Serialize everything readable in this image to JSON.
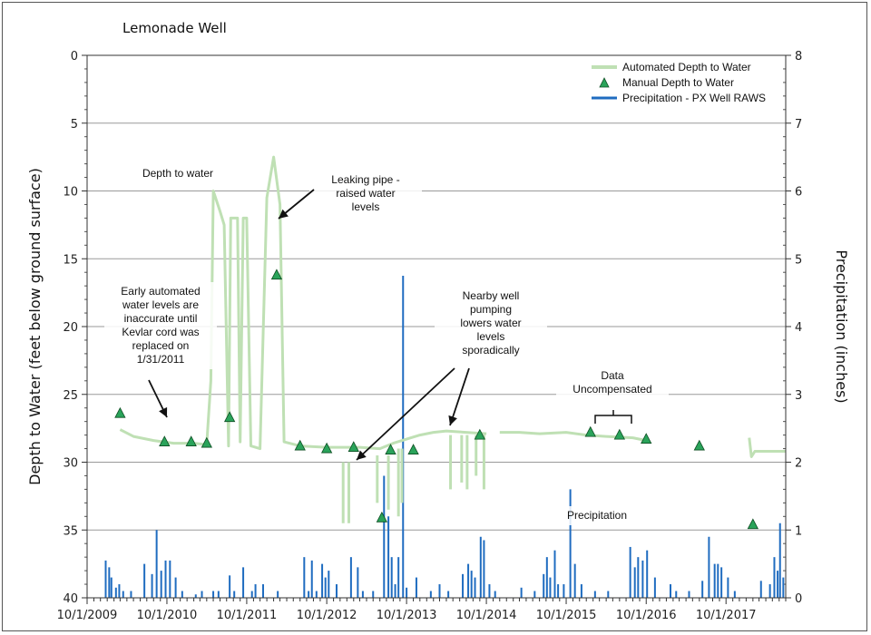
{
  "chart_data": {
    "type": "line",
    "title": "Lemonade Well",
    "ylabel": "Depth to Water (feet below ground surface)",
    "y2label": "Precipitation (inches)",
    "ylim": [
      40,
      0
    ],
    "y2lim": [
      0,
      8
    ],
    "yticks": [
      "0",
      "5",
      "10",
      "15",
      "20",
      "25",
      "30",
      "35",
      "40"
    ],
    "y2ticks": [
      "0",
      "1",
      "2",
      "3",
      "4",
      "5",
      "6",
      "7",
      "8"
    ],
    "xlim": [
      "2009-10-01",
      "2018-07-01"
    ],
    "xticks": [
      "10/1/2009",
      "10/1/2010",
      "10/1/2011",
      "10/1/2012",
      "10/1/2013",
      "10/1/2014",
      "10/1/2015",
      "10/1/2016",
      "10/1/2017"
    ],
    "grid": "horizontal",
    "legend_position": "top-right",
    "series": [
      {
        "name": "Automated Depth to Water",
        "type": "line",
        "axis": "left",
        "color": "#bfe0b4",
        "points": [
          [
            "2010-03-01",
            27.6
          ],
          [
            "2010-05-01",
            28.1
          ],
          [
            "2010-08-01",
            28.4
          ],
          [
            "2010-11-01",
            28.6
          ],
          [
            "2011-02-01",
            28.6
          ],
          [
            "2011-04-01",
            28.7
          ],
          [
            "2011-04-20",
            24.0
          ],
          [
            "2011-05-01",
            10.0
          ],
          [
            "2011-06-01",
            11.5
          ],
          [
            "2011-06-20",
            12.5
          ],
          [
            "2011-07-10",
            28.8
          ],
          [
            "2011-07-20",
            12.0
          ],
          [
            "2011-08-20",
            12.0
          ],
          [
            "2011-09-01",
            28.5
          ],
          [
            "2011-09-15",
            12.0
          ],
          [
            "2011-10-01",
            12.0
          ],
          [
            "2011-10-20",
            28.8
          ],
          [
            "2011-12-01",
            29.0
          ],
          [
            "2012-01-01",
            10.5
          ],
          [
            "2012-02-01",
            7.5
          ],
          [
            "2012-03-01",
            11.0
          ],
          [
            "2012-03-20",
            28.5
          ],
          [
            "2012-06-01",
            28.8
          ],
          [
            "2012-10-01",
            28.9
          ],
          [
            "2013-01-01",
            28.9
          ],
          [
            "2013-03-01",
            28.9
          ],
          [
            "2013-06-01",
            29.0
          ],
          [
            "2013-08-01",
            28.6
          ],
          [
            "2013-10-01",
            28.3
          ],
          [
            "2013-12-01",
            28.0
          ],
          [
            "2014-02-01",
            27.8
          ],
          [
            "2014-04-01",
            27.7
          ],
          [
            "2014-07-01",
            27.8
          ],
          [
            "2014-10-01",
            27.9
          ]
        ],
        "dips": [
          [
            "2012-12-15",
            30.0,
            34.5
          ],
          [
            "2013-01-10",
            30.0,
            34.5
          ],
          [
            "2013-05-20",
            29.5,
            33.0
          ],
          [
            "2013-07-10",
            29.5,
            33.5
          ],
          [
            "2013-08-25",
            29.0,
            34.0
          ],
          [
            "2013-09-10",
            29.0,
            33.0
          ],
          [
            "2014-04-20",
            28.0,
            32.0
          ],
          [
            "2014-06-10",
            28.0,
            31.5
          ],
          [
            "2014-07-05",
            28.0,
            32.0
          ],
          [
            "2014-08-15",
            28.0,
            31.0
          ],
          [
            "2014-09-20",
            28.0,
            32.0
          ]
        ],
        "segments": [
          [
            [
              "2014-12-01",
              27.8
            ],
            [
              "2015-03-01",
              27.8
            ],
            [
              "2015-06-01",
              27.9
            ],
            [
              "2015-10-01",
              27.8
            ],
            [
              "2016-01-01",
              28.0
            ],
            [
              "2016-04-01",
              28.1
            ],
            [
              "2016-08-01",
              28.2
            ],
            [
              "2016-10-01",
              28.4
            ]
          ],
          [
            [
              "2018-01-15",
              28.2
            ],
            [
              "2018-01-25",
              29.6
            ],
            [
              "2018-02-10",
              29.2
            ],
            [
              "2018-04-01",
              29.2
            ],
            [
              "2018-07-01",
              29.2
            ]
          ]
        ]
      },
      {
        "name": "Manual Depth to Water",
        "type": "scatter",
        "axis": "left",
        "marker": "triangle",
        "color": "#2aa35a",
        "points": [
          [
            "2010-03-01",
            26.4
          ],
          [
            "2010-09-20",
            28.5
          ],
          [
            "2011-01-20",
            28.5
          ],
          [
            "2011-04-01",
            28.6
          ],
          [
            "2011-07-15",
            26.7
          ],
          [
            "2012-02-15",
            16.2
          ],
          [
            "2012-06-01",
            28.8
          ],
          [
            "2012-10-01",
            29.0
          ],
          [
            "2013-02-01",
            28.9
          ],
          [
            "2013-06-10",
            34.1
          ],
          [
            "2013-07-20",
            29.1
          ],
          [
            "2013-11-01",
            29.1
          ],
          [
            "2014-09-01",
            28.0
          ],
          [
            "2016-01-20",
            27.8
          ],
          [
            "2016-06-01",
            28.0
          ],
          [
            "2016-10-01",
            28.3
          ],
          [
            "2017-06-01",
            28.8
          ],
          [
            "2018-02-01",
            34.6
          ]
        ]
      },
      {
        "name": "Precipitation - PX Well RAWS",
        "type": "bar",
        "axis": "right",
        "color": "#1f6cc0",
        "points": [
          [
            "2009-12-25",
            0.55
          ],
          [
            "2010-01-10",
            0.45
          ],
          [
            "2010-01-20",
            0.3
          ],
          [
            "2010-02-10",
            0.15
          ],
          [
            "2010-02-25",
            0.2
          ],
          [
            "2010-03-15",
            0.1
          ],
          [
            "2010-04-20",
            0.1
          ],
          [
            "2010-06-20",
            0.5
          ],
          [
            "2010-07-25",
            0.35
          ],
          [
            "2010-08-15",
            1.0
          ],
          [
            "2010-09-05",
            0.4
          ],
          [
            "2010-09-25",
            0.55
          ],
          [
            "2010-10-15",
            0.55
          ],
          [
            "2010-11-10",
            0.3
          ],
          [
            "2010-12-10",
            0.1
          ],
          [
            "2011-02-10",
            0.05
          ],
          [
            "2011-03-10",
            0.1
          ],
          [
            "2011-05-01",
            0.1
          ],
          [
            "2011-05-25",
            0.1
          ],
          [
            "2011-07-15",
            0.33
          ],
          [
            "2011-08-05",
            0.1
          ],
          [
            "2011-09-15",
            0.45
          ],
          [
            "2011-10-25",
            0.1
          ],
          [
            "2011-11-10",
            0.2
          ],
          [
            "2011-12-15",
            0.2
          ],
          [
            "2012-02-20",
            0.1
          ],
          [
            "2012-06-20",
            0.6
          ],
          [
            "2012-07-10",
            0.1
          ],
          [
            "2012-07-25",
            0.55
          ],
          [
            "2012-08-15",
            0.1
          ],
          [
            "2012-09-10",
            0.5
          ],
          [
            "2012-09-25",
            0.3
          ],
          [
            "2012-10-10",
            0.4
          ],
          [
            "2012-11-15",
            0.2
          ],
          [
            "2013-01-20",
            0.6
          ],
          [
            "2013-02-20",
            0.45
          ],
          [
            "2013-03-15",
            0.1
          ],
          [
            "2013-05-01",
            0.1
          ],
          [
            "2013-06-20",
            1.8
          ],
          [
            "2013-07-10",
            1.2
          ],
          [
            "2013-07-25",
            0.6
          ],
          [
            "2013-08-10",
            0.2
          ],
          [
            "2013-08-25",
            0.6
          ],
          [
            "2013-09-15",
            4.75
          ],
          [
            "2013-10-01",
            0.15
          ],
          [
            "2013-11-15",
            0.3
          ],
          [
            "2014-01-20",
            0.1
          ],
          [
            "2014-03-01",
            0.2
          ],
          [
            "2014-04-10",
            0.1
          ],
          [
            "2014-06-15",
            0.35
          ],
          [
            "2014-07-10",
            0.5
          ],
          [
            "2014-07-25",
            0.4
          ],
          [
            "2014-08-10",
            0.3
          ],
          [
            "2014-09-05",
            0.9
          ],
          [
            "2014-09-20",
            0.85
          ],
          [
            "2014-10-15",
            0.2
          ],
          [
            "2014-11-10",
            0.1
          ],
          [
            "2015-03-10",
            0.15
          ],
          [
            "2015-05-10",
            0.1
          ],
          [
            "2015-06-20",
            0.35
          ],
          [
            "2015-07-05",
            0.6
          ],
          [
            "2015-07-20",
            0.3
          ],
          [
            "2015-08-10",
            0.7
          ],
          [
            "2015-08-25",
            0.2
          ],
          [
            "2015-09-20",
            0.2
          ],
          [
            "2015-10-20",
            1.6
          ],
          [
            "2015-11-10",
            0.5
          ],
          [
            "2015-12-10",
            0.2
          ],
          [
            "2016-02-10",
            0.1
          ],
          [
            "2016-04-10",
            0.1
          ],
          [
            "2016-07-20",
            0.75
          ],
          [
            "2016-08-10",
            0.45
          ],
          [
            "2016-08-25",
            0.6
          ],
          [
            "2016-09-15",
            0.55
          ],
          [
            "2016-10-05",
            0.7
          ],
          [
            "2016-11-10",
            0.3
          ],
          [
            "2017-01-20",
            0.2
          ],
          [
            "2017-02-15",
            0.1
          ],
          [
            "2017-04-15",
            0.1
          ],
          [
            "2017-06-15",
            0.25
          ],
          [
            "2017-07-15",
            0.9
          ],
          [
            "2017-08-10",
            0.5
          ],
          [
            "2017-08-25",
            0.5
          ],
          [
            "2017-09-10",
            0.45
          ],
          [
            "2017-10-10",
            0.3
          ],
          [
            "2017-11-10",
            0.1
          ],
          [
            "2018-03-10",
            0.25
          ],
          [
            "2018-04-20",
            0.2
          ],
          [
            "2018-05-10",
            0.6
          ],
          [
            "2018-05-25",
            0.4
          ],
          [
            "2018-06-05",
            1.1
          ],
          [
            "2018-06-20",
            0.3
          ]
        ]
      }
    ],
    "annotations": [
      {
        "text": [
          "Depth to water"
        ]
      },
      {
        "text": [
          "Leaking pipe -",
          "raised water",
          "levels"
        ]
      },
      {
        "text": [
          "Early automated",
          "water levels are",
          "inaccurate until",
          "Kevlar cord was",
          "replaced on",
          "1/31/2011"
        ]
      },
      {
        "text": [
          "Nearby well",
          "pumping",
          "lowers water",
          "levels",
          "sporadically"
        ]
      },
      {
        "text": [
          "Data",
          "Uncompensated"
        ]
      },
      {
        "text": [
          "Precipitation"
        ]
      }
    ]
  }
}
